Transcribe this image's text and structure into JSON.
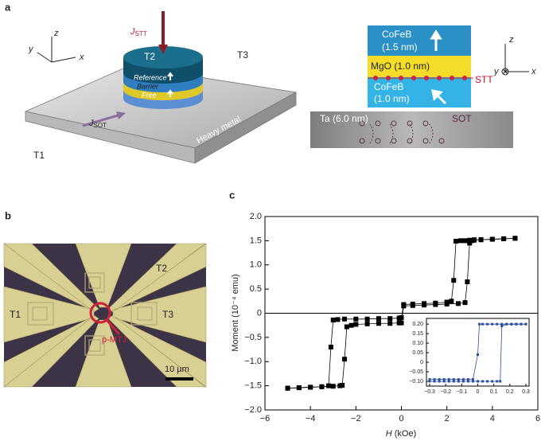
{
  "panel_a": {
    "label": "a",
    "axes_left": {
      "z": "z",
      "y": "y",
      "x": "x"
    },
    "j_stt": {
      "main": "J",
      "sub": "STT"
    },
    "j_sot": {
      "main": "J",
      "sub": "SOT"
    },
    "t2": "T2",
    "t3": "T3",
    "t1": "T1",
    "reference": "Reference",
    "barrier": "Barrier",
    "free": "Free",
    "heavy_metal": "Heavy metal",
    "stack": {
      "cofeb_top": "CoFeB",
      "cofeb_top_thickness": "(1.5 nm)",
      "mgo": "MgO (1.0 nm)",
      "stt": "STT",
      "cofeb_bottom": "CoFeB",
      "cofeb_bottom_thickness": "(1.0 nm)",
      "ta": "Ta (6.0 nm)",
      "sot": "SOT"
    },
    "axes_right": {
      "z": "z",
      "y": "y",
      "x": "x"
    }
  },
  "panel_b": {
    "label": "b",
    "t1": "T1",
    "t2": "T2",
    "t3": "T3",
    "device": "p-MTJ",
    "scale_bar": "10 µm"
  },
  "panel_c": {
    "label": "c"
  },
  "chart_data": [
    {
      "type": "line",
      "xlabel": {
        "main": "H",
        "rest": " (kOe)"
      },
      "ylabel": "Moment (10⁻⁴ emu)",
      "xlim": [
        -6,
        6
      ],
      "ylim": [
        -2,
        2
      ],
      "zero_line": true,
      "xticks": [
        {
          "value": -6,
          "label": "−6"
        },
        {
          "value": -4,
          "label": "−4"
        },
        {
          "value": -2,
          "label": "−2"
        },
        0,
        2,
        4,
        6
      ],
      "yticks": [
        {
          "value": 2,
          "label": "2.0"
        },
        {
          "value": 1.5,
          "label": "1.5"
        },
        {
          "value": 1,
          "label": "1.0"
        },
        {
          "value": 0.5,
          "label": "0.5"
        },
        0,
        {
          "value": -0.5,
          "label": "−0.5"
        },
        {
          "value": -1,
          "label": "−1.0"
        },
        {
          "value": -1.5,
          "label": "−1.5"
        },
        {
          "value": -2,
          "label": "−2.0"
        }
      ],
      "series": [
        {
          "color": "#000000",
          "x": [
            5,
            4.5,
            4,
            3.5,
            3.2,
            3,
            2.8,
            2.6,
            2.4,
            2.3,
            2.2,
            2,
            1.5,
            1,
            0.5,
            0.1,
            0,
            -0.1,
            -0.5,
            -1,
            -1.5,
            -2,
            -2.5,
            -2.8,
            -3,
            -3.1,
            -3.2,
            -3.5,
            -4,
            -4.5,
            -5
          ],
          "values": [
            1.55,
            1.54,
            1.53,
            1.52,
            1.52,
            1.51,
            1.5,
            1.5,
            1.49,
            0.68,
            0.25,
            0.23,
            0.21,
            0.2,
            0.19,
            0.18,
            -0.09,
            -0.1,
            -0.11,
            -0.11,
            -0.12,
            -0.12,
            -0.12,
            -0.13,
            -0.14,
            -0.7,
            -1.5,
            -1.52,
            -1.53,
            -1.54,
            -1.55
          ]
        },
        {
          "color": "#000000",
          "x": [
            -5,
            -4.5,
            -4,
            -3.5,
            -3,
            -2.7,
            -2.6,
            -2.5,
            -2.4,
            -2.2,
            -2,
            -1.5,
            -1,
            -0.5,
            -0.1,
            0,
            0.1,
            0.5,
            1,
            1.5,
            2,
            2.5,
            2.8,
            2.9,
            3,
            3.1,
            3.2,
            3.5,
            4,
            4.5,
            5
          ],
          "values": [
            -1.55,
            -1.54,
            -1.53,
            -1.52,
            -1.51,
            -1.5,
            -1.49,
            -0.95,
            -0.28,
            -0.25,
            -0.23,
            -0.22,
            -0.21,
            -0.21,
            -0.2,
            -0.2,
            0.15,
            0.16,
            0.17,
            0.18,
            0.19,
            0.2,
            0.22,
            0.65,
            1.45,
            1.5,
            1.51,
            1.52,
            1.53,
            1.54,
            1.55
          ]
        }
      ]
    },
    {
      "type": "line",
      "xlim": [
        -0.32,
        0.32
      ],
      "ylim": [
        -0.125,
        0.23
      ],
      "xticks": [
        {
          "value": -0.3,
          "label": "−0.3"
        },
        {
          "value": -0.2,
          "label": "−0.2"
        },
        {
          "value": -0.1,
          "label": "−0.1"
        },
        0,
        0.1,
        0.2,
        0.3
      ],
      "yticks": [
        {
          "value": 0.2,
          "label": "0.20"
        },
        {
          "value": 0.15,
          "label": "0.15"
        },
        {
          "value": 0.1,
          "label": "0.10"
        },
        0.05,
        0,
        {
          "value": -0.05,
          "label": "−0.05"
        },
        {
          "value": -0.1,
          "label": "−0.10"
        }
      ],
      "series": [
        {
          "color": "#2a4fa0",
          "x": [
            0.3,
            0.27,
            0.24,
            0.21,
            0.18,
            0.15,
            0.12,
            0.09,
            0.06,
            0.03,
            0.01,
            0,
            -0.03,
            -0.06,
            -0.09,
            -0.12,
            -0.15,
            -0.18,
            -0.21,
            -0.24,
            -0.27,
            -0.3
          ],
          "values": [
            0.2,
            0.2,
            0.2,
            0.2,
            0.2,
            0.2,
            0.2,
            0.2,
            0.2,
            0.2,
            0.2,
            0.04,
            -0.09,
            -0.09,
            -0.09,
            -0.09,
            -0.09,
            -0.09,
            -0.09,
            -0.09,
            -0.09,
            -0.09
          ]
        },
        {
          "color": "#2a4fa0",
          "x": [
            -0.3,
            -0.27,
            -0.24,
            -0.21,
            -0.18,
            -0.15,
            -0.12,
            -0.09,
            -0.06,
            -0.03,
            0,
            0.03,
            0.06,
            0.09,
            0.12,
            0.14,
            0.15,
            0.18,
            0.21,
            0.24,
            0.27,
            0.3
          ],
          "values": [
            -0.1,
            -0.1,
            -0.1,
            -0.1,
            -0.1,
            -0.1,
            -0.1,
            -0.1,
            -0.1,
            -0.1,
            -0.1,
            -0.1,
            -0.1,
            -0.1,
            -0.1,
            -0.1,
            0.19,
            0.2,
            0.2,
            0.2,
            0.2,
            0.2
          ]
        }
      ]
    }
  ]
}
